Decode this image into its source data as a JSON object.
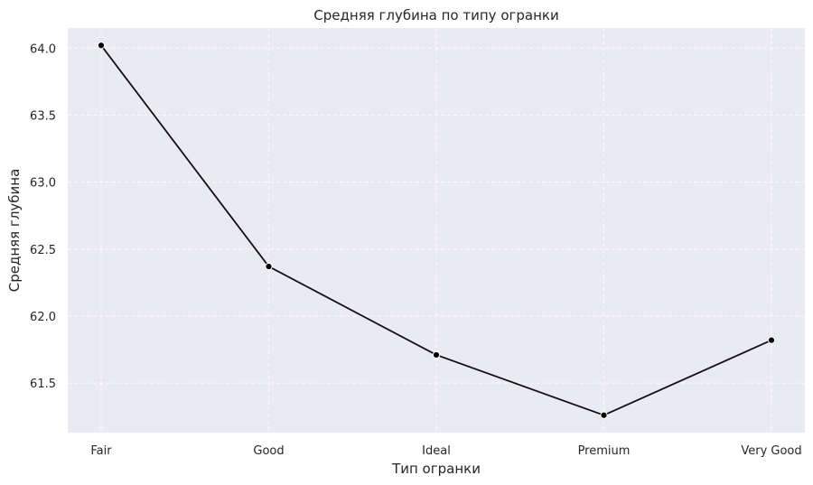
{
  "chart_data": {
    "type": "line",
    "title": "Средняя глубина по типу огранки",
    "xlabel": "Тип огранки",
    "ylabel": "Средняя глубина",
    "categories": [
      "Fair",
      "Good",
      "Ideal",
      "Premium",
      "Very Good"
    ],
    "series": [
      {
        "values": [
          64.02,
          62.37,
          61.71,
          61.26,
          61.82
        ]
      }
    ],
    "ylim": [
      61.13,
      64.15
    ],
    "yticks": [
      "61.5",
      "62.0",
      "62.5",
      "63.0",
      "63.5",
      "64.0"
    ],
    "grid": true,
    "colors": {
      "background": "#eaeaf2",
      "line": "#111111",
      "marker": "#000000",
      "grid": "#ffffff"
    }
  }
}
